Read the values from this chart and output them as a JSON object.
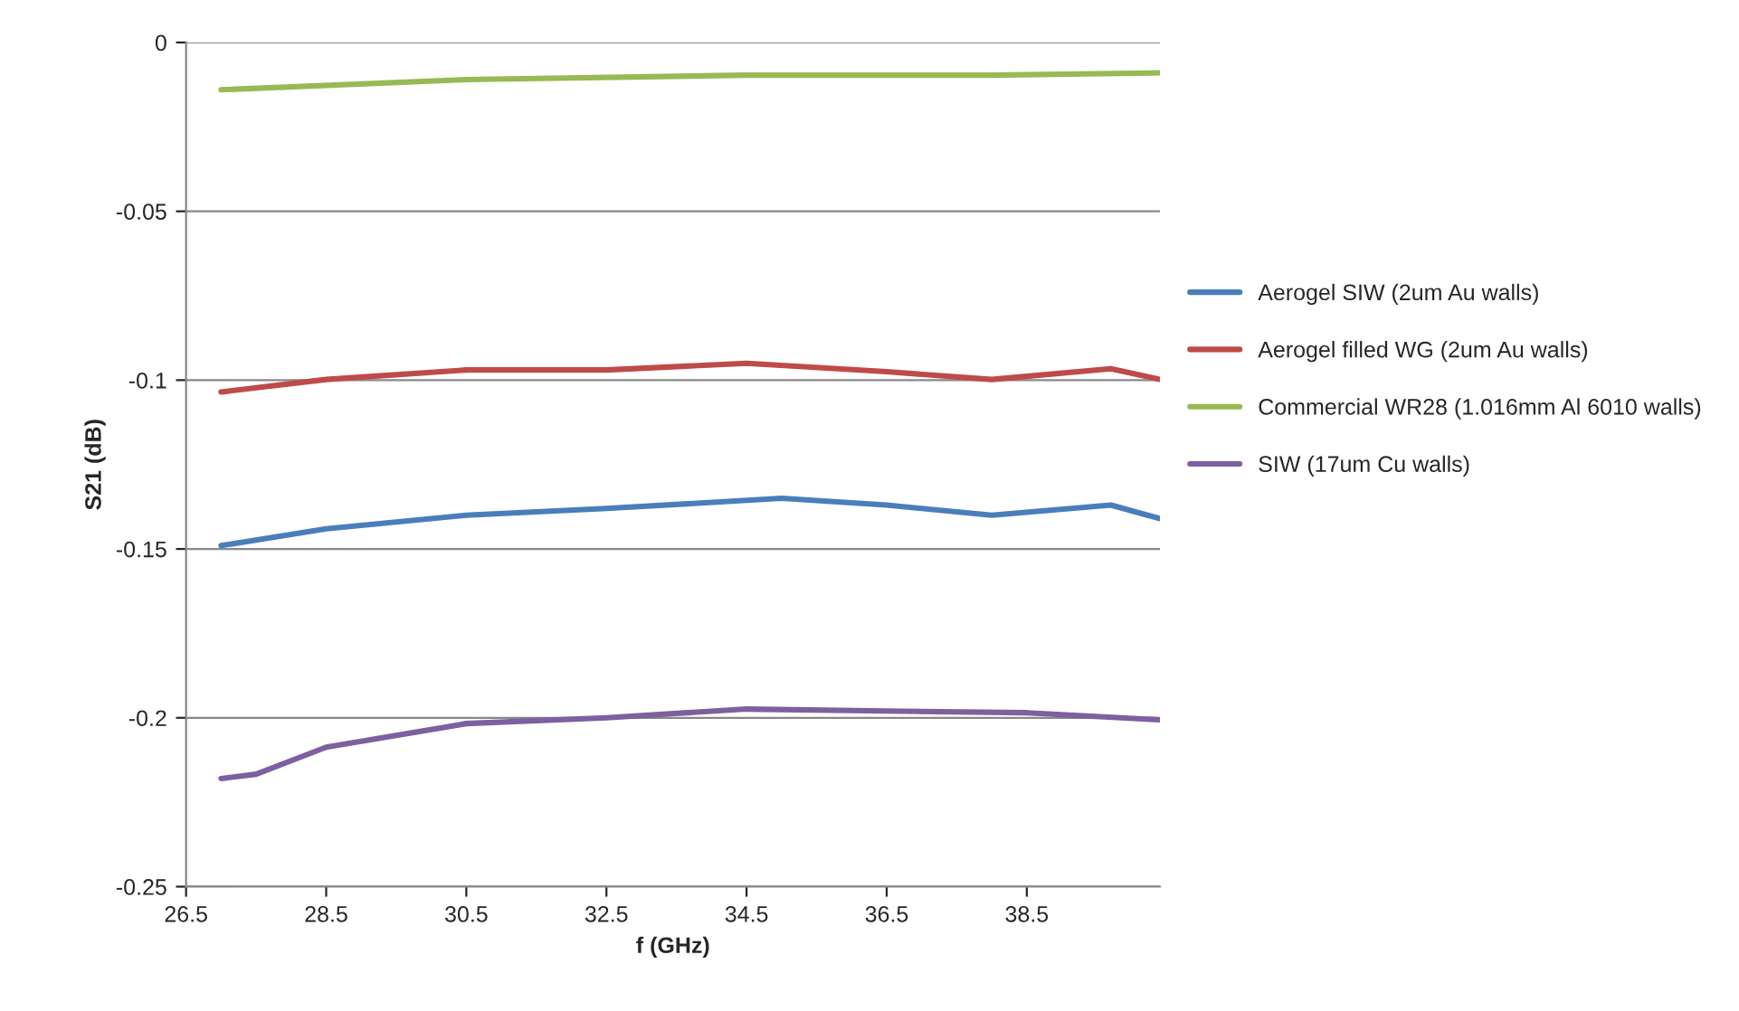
{
  "chart_data": {
    "type": "line",
    "xlabel": "f (GHz)",
    "ylabel": "S21 (dB)",
    "xlim": [
      26.5,
      40.4
    ],
    "xticks": [
      26.5,
      28.5,
      30.5,
      32.5,
      34.5,
      36.5,
      38.5
    ],
    "ylim": [
      -0.25,
      0
    ],
    "yticks": [
      -0.25,
      -0.2,
      -0.15,
      -0.1,
      -0.05,
      0
    ],
    "grid": "y",
    "legend": "right",
    "marker": "none",
    "line_style": "solid",
    "series": [
      {
        "name": "Aerogel SIW (2um Au walls)",
        "color": "#4a7ebb",
        "x": [
          27,
          28.5,
          30.5,
          32.5,
          35,
          36.5,
          38,
          39.7,
          40.4
        ],
        "values": [
          -0.149,
          -0.144,
          -0.14,
          -0.138,
          -0.135,
          -0.137,
          -0.14,
          -0.137,
          -0.141
        ]
      },
      {
        "name": "Aerogel filled WG (2um Au walls)",
        "color": "#be4b48",
        "x": [
          27,
          28.5,
          30.5,
          32.5,
          34.5,
          36.5,
          38,
          39.7,
          40.4
        ],
        "values": [
          -0.1035,
          -0.0998,
          -0.097,
          -0.097,
          -0.095,
          -0.0975,
          -0.0998,
          -0.0966,
          -0.0998
        ]
      },
      {
        "name": "Commercial WR28 (1.016mm Al 6010 walls)",
        "color": "#98b954",
        "x": [
          27,
          30.5,
          34.5,
          38,
          40.4
        ],
        "values": [
          -0.014,
          -0.011,
          -0.0097,
          -0.0097,
          -0.009
        ]
      },
      {
        "name": "SIW (17um Cu walls)",
        "color": "#7d60a0",
        "x": [
          27,
          27.5,
          28.5,
          30.5,
          32.5,
          34.5,
          36.5,
          38.5,
          40.4
        ],
        "values": [
          -0.218,
          -0.2167,
          -0.2087,
          -0.2017,
          -0.2,
          -0.1974,
          -0.198,
          -0.1985,
          -0.2006
        ]
      }
    ]
  }
}
